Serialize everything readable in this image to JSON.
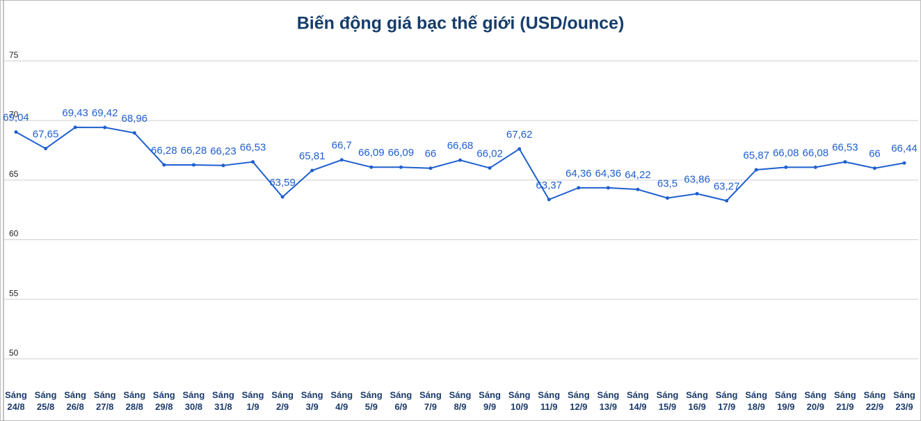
{
  "chart_data": {
    "type": "line",
    "title": "Biến động giá bạc thế giới (USD/ounce)",
    "categories": [
      "Sáng 24/8",
      "Sáng 25/8",
      "Sáng 26/8",
      "Sáng 27/8",
      "Sáng 28/8",
      "Sáng 29/8",
      "Sáng 30/8",
      "Sáng 31/8",
      "Sáng 1/9",
      "Sáng 2/9",
      "Sáng 3/9",
      "Sáng 4/9",
      "Sáng 5/9",
      "Sáng 6/9",
      "Sáng 7/9",
      "Sáng 8/9",
      "Sáng 9/9",
      "Sáng 10/9",
      "Sáng 11/9",
      "Sáng 12/9",
      "Sáng 13/9",
      "Sáng 14/9",
      "Sáng 15/9",
      "Sáng 16/9",
      "Sáng 17/9",
      "Sáng 18/9",
      "Sáng 19/9",
      "Sáng 20/9",
      "Sáng 21/9",
      "Sáng 22/9",
      "Sáng 23/9"
    ],
    "values": [
      69.04,
      67.65,
      69.43,
      69.42,
      68.96,
      66.28,
      66.28,
      66.23,
      66.53,
      63.59,
      65.81,
      66.7,
      66.09,
      66.09,
      66,
      66.68,
      66.02,
      67.62,
      63.37,
      64.36,
      64.36,
      64.22,
      63.5,
      63.86,
      63.27,
      65.87,
      66.08,
      66.08,
      66.53,
      66,
      66.44
    ],
    "value_labels": [
      "69,04",
      "67,65",
      "69,43",
      "69,42",
      "68,96",
      "66,28",
      "66,28",
      "66,23",
      "66,53",
      "63,59",
      "65,81",
      "66,7",
      "66,09",
      "66,09",
      "66",
      "66,68",
      "66,02",
      "67,62",
      "63,37",
      "64,36",
      "64,36",
      "64,22",
      "63,5",
      "63,86",
      "63,27",
      "65,87",
      "66,08",
      "66,08",
      "66,53",
      "66",
      "66,44"
    ],
    "color": "#1f5fcf",
    "ylim": [
      48,
      80
    ],
    "yticks": [
      50,
      55,
      60,
      65,
      70,
      75
    ],
    "grid": true
  }
}
